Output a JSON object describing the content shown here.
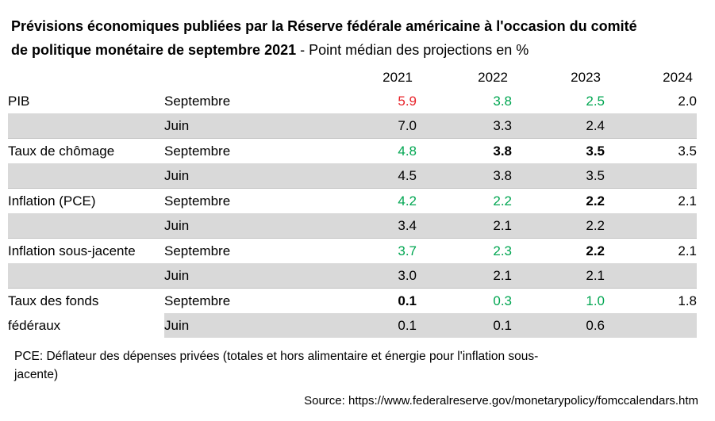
{
  "title": {
    "line1_bold": "Prévisions économiques publiées par la Réserve fédérale américaine à l'occasion du comité",
    "line2_bold": "de politique monétaire de septembre 2021",
    "line2_regular": " - Point médian des projections en %"
  },
  "colors": {
    "red": "#e8232a",
    "green": "#00a651",
    "band": "#d9d9d9",
    "separator_line": "#bfbfbf",
    "text": "#000000"
  },
  "table": {
    "year_headers": [
      "2021",
      "2022",
      "2023",
      "2024"
    ],
    "rows": [
      {
        "indicator": "PIB",
        "period": "Septembre",
        "shaded": false,
        "separator": false,
        "values": [
          {
            "text": "5.9",
            "color": "red"
          },
          {
            "text": "3.8",
            "color": "green"
          },
          {
            "text": "2.5",
            "color": "green"
          },
          {
            "text": "2.0"
          }
        ]
      },
      {
        "indicator": "",
        "period": "Juin",
        "shaded": true,
        "separator": false,
        "values": [
          {
            "text": "7.0"
          },
          {
            "text": "3.3"
          },
          {
            "text": "2.4"
          },
          {
            "text": ""
          }
        ]
      },
      {
        "indicator": "Taux de chômage",
        "period": "Septembre",
        "shaded": false,
        "separator": true,
        "values": [
          {
            "text": "4.8",
            "color": "green"
          },
          {
            "text": "3.8",
            "bold": true
          },
          {
            "text": "3.5",
            "bold": true
          },
          {
            "text": "3.5"
          }
        ]
      },
      {
        "indicator": "",
        "period": "Juin",
        "shaded": true,
        "separator": false,
        "values": [
          {
            "text": "4.5"
          },
          {
            "text": "3.8"
          },
          {
            "text": "3.5"
          },
          {
            "text": ""
          }
        ]
      },
      {
        "indicator": "Inflation (PCE)",
        "period": "Septembre",
        "shaded": false,
        "separator": true,
        "values": [
          {
            "text": "4.2",
            "color": "green"
          },
          {
            "text": "2.2",
            "color": "green"
          },
          {
            "text": "2.2",
            "bold": true
          },
          {
            "text": "2.1"
          }
        ]
      },
      {
        "indicator": "",
        "period": "Juin",
        "shaded": true,
        "separator": false,
        "values": [
          {
            "text": "3.4"
          },
          {
            "text": "2.1"
          },
          {
            "text": "2.2"
          },
          {
            "text": ""
          }
        ]
      },
      {
        "indicator": "Inflation sous-jacente",
        "period": "Septembre",
        "shaded": false,
        "separator": true,
        "values": [
          {
            "text": "3.7",
            "color": "green"
          },
          {
            "text": "2.3",
            "color": "green"
          },
          {
            "text": "2.2",
            "bold": true
          },
          {
            "text": "2.1"
          }
        ]
      },
      {
        "indicator": "",
        "period": "Juin",
        "shaded": true,
        "separator": false,
        "values": [
          {
            "text": "3.0"
          },
          {
            "text": "2.1"
          },
          {
            "text": "2.1"
          },
          {
            "text": ""
          }
        ]
      },
      {
        "indicator": "Taux des fonds",
        "period": "Septembre",
        "shaded": false,
        "separator": true,
        "values": [
          {
            "text": "0.1",
            "bold": true
          },
          {
            "text": "0.3",
            "color": "green"
          },
          {
            "text": "1.0",
            "color": "green"
          },
          {
            "text": "1.8"
          }
        ]
      },
      {
        "indicator": "fédéraux",
        "period": "Juin",
        "shaded": true,
        "separator": false,
        "label_unshaded": true,
        "values": [
          {
            "text": "0.1"
          },
          {
            "text": "0.1"
          },
          {
            "text": "0.6"
          },
          {
            "text": ""
          }
        ]
      }
    ]
  },
  "footnote": {
    "line1": "PCE: Déflateur des dépenses privées (totales et hors alimentaire et énergie pour l'inflation sous-",
    "line2": "jacente)"
  },
  "source": "Source: https://www.federalreserve.gov/monetarypolicy/fomccalendars.htm"
}
